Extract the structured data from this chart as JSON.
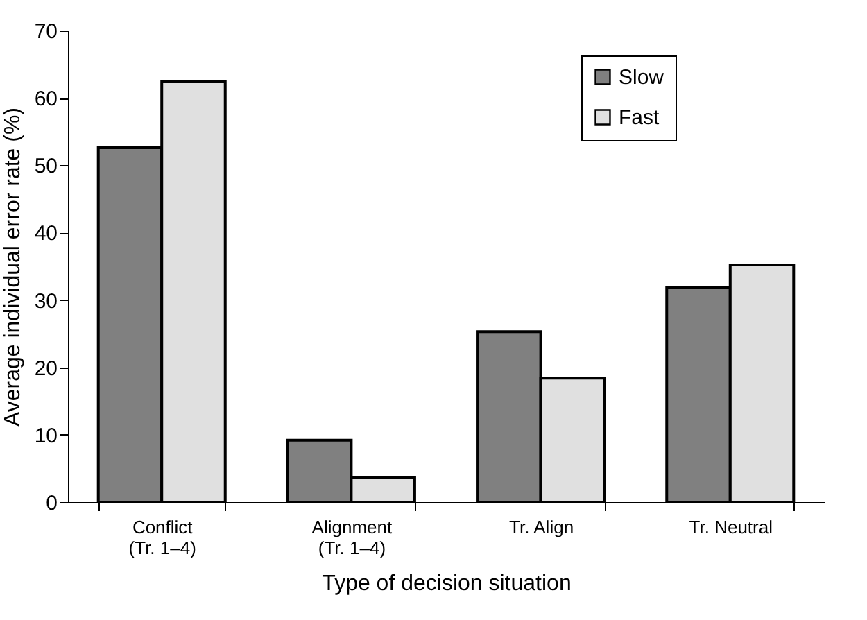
{
  "chart_data": {
    "type": "bar",
    "xlabel": "Type of decision situation",
    "ylabel": "Average individual error rate (%)",
    "categories": [
      "Conflict\n(Tr. 1–4)",
      "Alignment\n(Tr. 1–4)",
      "Tr. Align",
      "Tr. Neutral"
    ],
    "series": [
      {
        "name": "Slow",
        "color": "#808080",
        "values": [
          52.6,
          9.2,
          25.3,
          31.8
        ]
      },
      {
        "name": "Fast",
        "color": "#e0e0e0",
        "values": [
          62.4,
          3.6,
          18.4,
          35.2
        ]
      }
    ],
    "ylim": [
      0,
      70
    ],
    "yticks": [
      0,
      10,
      20,
      30,
      40,
      50,
      60,
      70
    ],
    "grid": false,
    "legend": "top right"
  }
}
